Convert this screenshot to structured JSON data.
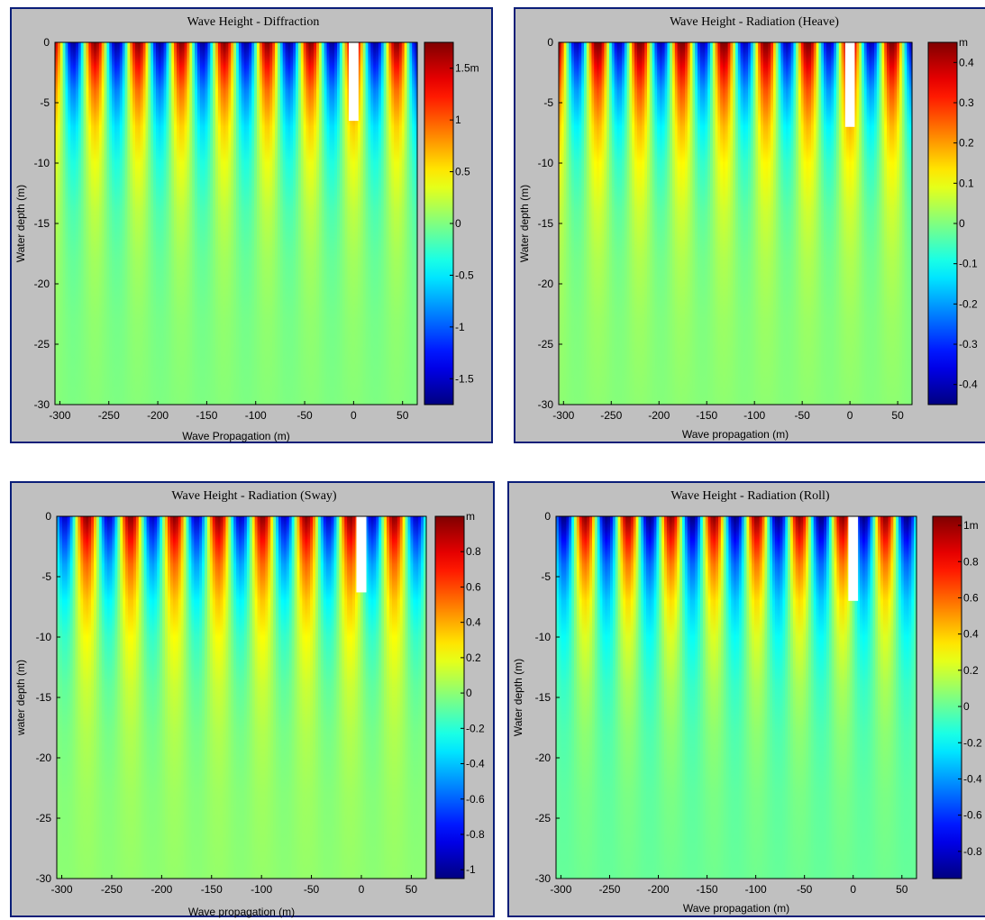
{
  "chart_data": [
    {
      "type": "heatmap",
      "title": "Wave Height - Diffraction",
      "xlabel": "Wave Propagation (m)",
      "ylabel": "Water depth (m)",
      "xlim": [
        -305,
        65
      ],
      "ylim": [
        -30,
        0
      ],
      "xticks": [
        "-300",
        "-250",
        "-200",
        "-150",
        "-100",
        "-50",
        "0",
        "50"
      ],
      "yticks": [
        "0",
        "-5",
        "-10",
        "-15",
        "-20",
        "-25",
        "-30"
      ],
      "colorbar": {
        "range": [
          -1.75,
          1.75
        ],
        "ticks": [
          "1.5m",
          "1",
          "0.5",
          "0",
          "-0.5",
          "-1",
          "-1.5"
        ],
        "tick_values": [
          1.5,
          1,
          0.5,
          0,
          -0.5,
          -1,
          -1.5
        ],
        "unit": ""
      },
      "field": {
        "wavelength_m": 44,
        "phase": 0,
        "surface_amplitude": 1.7,
        "body_x_m": [
          -5,
          5
        ],
        "body_draft_m": -6.5
      }
    },
    {
      "type": "heatmap",
      "title": "Wave Height - Radiation (Heave)",
      "xlabel": "Wave propagation (m)",
      "ylabel": "Water depth (m)",
      "xlim": [
        -305,
        65
      ],
      "ylim": [
        -30,
        0
      ],
      "xticks": [
        "-300",
        "-250",
        "-200",
        "-150",
        "-100",
        "-50",
        "0",
        "50"
      ],
      "yticks": [
        "0",
        "-5",
        "-10",
        "-15",
        "-20",
        "-25",
        "-30"
      ],
      "colorbar": {
        "range": [
          -0.45,
          0.45
        ],
        "ticks": [
          "0.4",
          "0.3",
          "0.2",
          "0.1",
          "0",
          "-0.1",
          "-0.2",
          "-0.3",
          "-0.4"
        ],
        "tick_values": [
          0.4,
          0.3,
          0.2,
          0.1,
          0,
          -0.1,
          -0.2,
          -0.3,
          -0.4
        ],
        "unit": "m"
      },
      "field": {
        "wavelength_m": 44,
        "phase": 0,
        "surface_amplitude": 0.44,
        "body_x_m": [
          -5,
          5
        ],
        "body_draft_m": -7
      }
    },
    {
      "type": "heatmap",
      "title": "Wave Height - Radiation (Sway)",
      "xlabel": "Wave propagation (m)",
      "ylabel": "water depth (m)",
      "xlim": [
        -305,
        65
      ],
      "ylim": [
        -30,
        0
      ],
      "xticks": [
        "-300",
        "-250",
        "-200",
        "-150",
        "-100",
        "-50",
        "0",
        "50"
      ],
      "yticks": [
        "0",
        "-5",
        "-10",
        "-15",
        "-20",
        "-25",
        "-30"
      ],
      "colorbar": {
        "range": [
          -1.05,
          1.0
        ],
        "ticks": [
          "0.8",
          "0.6",
          "0.4",
          "0.2",
          "0",
          "-0.2",
          "-0.4",
          "-0.6",
          "-0.8",
          "-1"
        ],
        "tick_values": [
          0.8,
          0.6,
          0.4,
          0.2,
          0,
          -0.2,
          -0.4,
          -0.6,
          -0.8,
          -1
        ],
        "unit": "m"
      },
      "field": {
        "wavelength_m": 44,
        "phase": 0.5,
        "surface_amplitude": 0.95,
        "body_x_m": [
          -5,
          5
        ],
        "body_draft_m": -6.3
      }
    },
    {
      "type": "heatmap",
      "title": "Wave Height - Radiation (Roll)",
      "xlabel": "Wave propagation (m)",
      "ylabel": "Water depth (m)",
      "xlim": [
        -305,
        65
      ],
      "ylim": [
        -30,
        0
      ],
      "xticks": [
        "-300",
        "-250",
        "-200",
        "-150",
        "-100",
        "-50",
        "0",
        "50"
      ],
      "yticks": [
        "0",
        "-5",
        "-10",
        "-15",
        "-20",
        "-25",
        "-30"
      ],
      "colorbar": {
        "range": [
          -0.95,
          1.05
        ],
        "ticks": [
          "1m",
          "0.8",
          "0.6",
          "0.4",
          "0.2",
          "0",
          "-0.2",
          "-0.4",
          "-0.6",
          "-0.8"
        ],
        "tick_values": [
          1,
          0.8,
          0.6,
          0.4,
          0.2,
          0,
          -0.2,
          -0.4,
          -0.6,
          -0.8
        ],
        "unit": ""
      },
      "field": {
        "wavelength_m": 44,
        "phase": 0.5,
        "surface_amplitude": 1.0,
        "body_x_m": [
          -5,
          5
        ],
        "body_draft_m": -7
      }
    }
  ],
  "colors": {
    "panel_background": "#c0c0c0",
    "panel_border": "#0a1e78",
    "colormap": "jet",
    "body": "#ffffff"
  }
}
